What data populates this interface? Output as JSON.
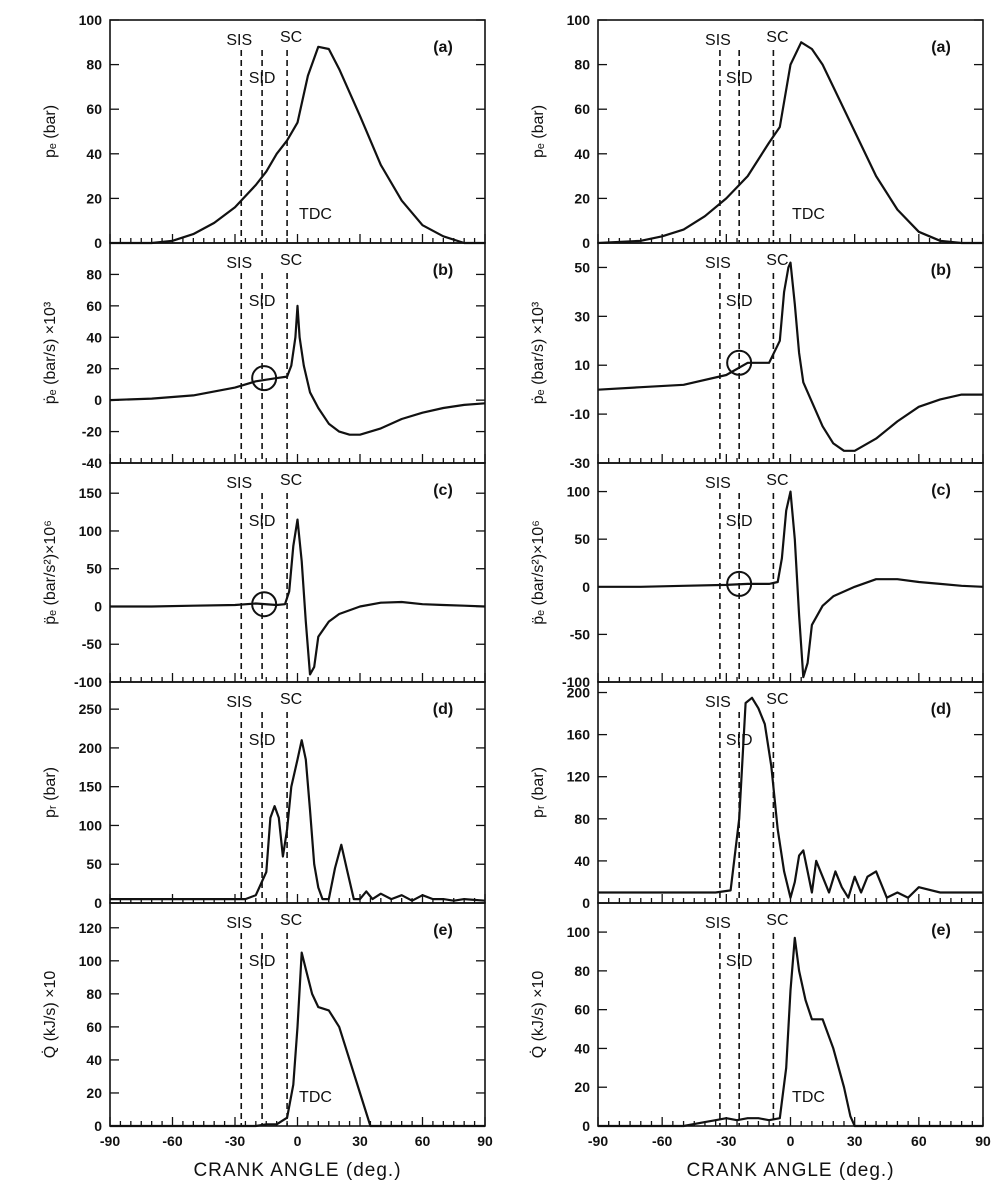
{
  "figure": {
    "x_ticks": [
      -90,
      -60,
      -30,
      0,
      30,
      60,
      90
    ],
    "xlabel": "CRANK ANGLE (deg.)",
    "xlim": [
      -90,
      90
    ]
  },
  "chart_data": [
    {
      "type": "line",
      "column": "left",
      "panel": "(a)",
      "ylabel": "pₑ (bar)",
      "ylim": [
        0,
        100
      ],
      "yticks": [
        0,
        20,
        40,
        60,
        80,
        100
      ],
      "markers": [
        {
          "label": "SIS",
          "x": -27
        },
        {
          "label": "SID",
          "x": -17
        },
        {
          "label": "SC",
          "x": -5
        },
        {
          "label": "TDC",
          "x": 0,
          "label_only": true
        }
      ],
      "series": [
        {
          "x": [
            -90,
            -70,
            -60,
            -50,
            -40,
            -30,
            -20,
            -15,
            -10,
            -5,
            0,
            5,
            10,
            15,
            20,
            30,
            40,
            50,
            60,
            70,
            80,
            90
          ],
          "y": [
            0,
            0,
            1,
            4,
            9,
            16,
            26,
            32,
            40,
            46,
            54,
            75,
            88,
            87,
            78,
            57,
            35,
            19,
            8,
            3,
            0,
            0
          ]
        }
      ]
    },
    {
      "type": "line",
      "column": "left",
      "panel": "(b)",
      "ylabel": "ṗₑ (bar/s) ×10³",
      "ylim": [
        -40,
        100
      ],
      "yticks": [
        -40,
        -20,
        0,
        20,
        40,
        60,
        80
      ],
      "circle": {
        "x": -16,
        "y": 14
      },
      "markers": [
        {
          "label": "SIS",
          "x": -27
        },
        {
          "label": "SID",
          "x": -17
        },
        {
          "label": "SC",
          "x": -5
        }
      ],
      "series": [
        {
          "x": [
            -90,
            -70,
            -50,
            -30,
            -20,
            -10,
            -5,
            -3,
            -1,
            0,
            1,
            3,
            6,
            10,
            15,
            20,
            25,
            30,
            40,
            50,
            60,
            70,
            80,
            90
          ],
          "y": [
            0,
            1,
            3,
            8,
            12,
            14,
            15,
            22,
            40,
            60,
            40,
            22,
            5,
            -5,
            -15,
            -20,
            -22,
            -22,
            -18,
            -12,
            -8,
            -5,
            -3,
            -2
          ]
        }
      ]
    },
    {
      "type": "line",
      "column": "left",
      "panel": "(c)",
      "ylabel": "p̈ₑ (bar/s²)×10⁶",
      "ylim": [
        -100,
        190
      ],
      "yticks": [
        -100,
        -50,
        0,
        50,
        100,
        150
      ],
      "circle": {
        "x": -16,
        "y": 3
      },
      "markers": [
        {
          "label": "SIS",
          "x": -27
        },
        {
          "label": "SID",
          "x": -17
        },
        {
          "label": "SC",
          "x": -5
        }
      ],
      "series": [
        {
          "x": [
            -90,
            -70,
            -50,
            -30,
            -20,
            -10,
            -6,
            -4,
            -2,
            0,
            2,
            4,
            6,
            8,
            10,
            15,
            20,
            30,
            40,
            50,
            60,
            70,
            80,
            90
          ],
          "y": [
            0,
            0,
            1,
            2,
            4,
            2,
            3,
            20,
            80,
            115,
            60,
            -20,
            -90,
            -80,
            -40,
            -20,
            -10,
            0,
            5,
            6,
            3,
            2,
            1,
            0
          ]
        }
      ]
    },
    {
      "type": "line",
      "column": "left",
      "panel": "(d)",
      "ylabel": "pᵣ (bar)",
      "ylim": [
        0,
        285
      ],
      "yticks": [
        0,
        50,
        100,
        150,
        200,
        250
      ],
      "markers": [
        {
          "label": "SIS",
          "x": -27
        },
        {
          "label": "SID",
          "x": -17
        },
        {
          "label": "SC",
          "x": -5
        }
      ],
      "series": [
        {
          "x": [
            -90,
            -60,
            -40,
            -25,
            -20,
            -15,
            -13,
            -11,
            -9,
            -7,
            -5,
            -3,
            0,
            2,
            4,
            6,
            8,
            10,
            12,
            15,
            18,
            21,
            24,
            27,
            30,
            33,
            36,
            40,
            45,
            50,
            55,
            60,
            65,
            70,
            75,
            80,
            90
          ],
          "y": [
            5,
            5,
            5,
            5,
            10,
            40,
            110,
            125,
            110,
            60,
            95,
            150,
            185,
            210,
            185,
            120,
            50,
            20,
            5,
            5,
            45,
            75,
            40,
            5,
            5,
            15,
            5,
            12,
            5,
            10,
            3,
            10,
            5,
            5,
            3,
            5,
            3
          ]
        }
      ]
    },
    {
      "type": "line",
      "column": "left",
      "panel": "(e)",
      "ylabel": "Q̇ (kJ/s) ×10",
      "ylim": [
        0,
        135
      ],
      "yticks": [
        0,
        20,
        40,
        60,
        80,
        100,
        120
      ],
      "markers": [
        {
          "label": "SIS",
          "x": -27
        },
        {
          "label": "SID",
          "x": -17
        },
        {
          "label": "SC",
          "x": -5
        },
        {
          "label": "TDC",
          "x": 0,
          "label_only": true
        }
      ],
      "series": [
        {
          "x": [
            -90,
            -40,
            -30,
            -20,
            -15,
            -10,
            -5,
            -2,
            0,
            2,
            4,
            7,
            10,
            15,
            20,
            25,
            30,
            35,
            40,
            50,
            90
          ],
          "y": [
            0,
            0,
            0,
            0,
            1,
            1,
            5,
            25,
            60,
            105,
            95,
            80,
            72,
            70,
            60,
            40,
            20,
            0,
            0,
            0,
            0
          ]
        }
      ]
    },
    {
      "type": "line",
      "column": "right",
      "panel": "(a)",
      "ylabel": "pₑ (bar)",
      "ylim": [
        0,
        100
      ],
      "yticks": [
        0,
        20,
        40,
        60,
        80,
        100
      ],
      "markers": [
        {
          "label": "SIS",
          "x": -33
        },
        {
          "label": "SID",
          "x": -24
        },
        {
          "label": "SC",
          "x": -8
        },
        {
          "label": "TDC",
          "x": 0,
          "label_only": true
        }
      ],
      "series": [
        {
          "x": [
            -90,
            -70,
            -60,
            -50,
            -40,
            -30,
            -20,
            -10,
            -5,
            0,
            5,
            10,
            15,
            20,
            30,
            40,
            50,
            60,
            70,
            80,
            90
          ],
          "y": [
            0,
            1,
            3,
            6,
            12,
            20,
            30,
            45,
            52,
            80,
            90,
            87,
            80,
            70,
            50,
            30,
            15,
            5,
            1,
            0,
            0
          ]
        }
      ]
    },
    {
      "type": "line",
      "column": "right",
      "panel": "(b)",
      "ylabel": "ṗₑ (bar/s) ×10³",
      "ylim": [
        -30,
        60
      ],
      "yticks": [
        -30,
        -10,
        10,
        30,
        50
      ],
      "circle": {
        "x": -24,
        "y": 11
      },
      "markers": [
        {
          "label": "SIS",
          "x": -33
        },
        {
          "label": "SID",
          "x": -24
        },
        {
          "label": "SC",
          "x": -8
        }
      ],
      "series": [
        {
          "x": [
            -90,
            -70,
            -50,
            -30,
            -20,
            -10,
            -5,
            -3,
            -1,
            0,
            2,
            4,
            6,
            10,
            15,
            20,
            25,
            30,
            40,
            50,
            60,
            70,
            80,
            90
          ],
          "y": [
            0,
            1,
            2,
            6,
            11,
            11,
            20,
            40,
            50,
            52,
            35,
            15,
            3,
            -5,
            -15,
            -22,
            -25,
            -25,
            -20,
            -13,
            -7,
            -4,
            -2,
            -2
          ]
        }
      ]
    },
    {
      "type": "line",
      "column": "right",
      "panel": "(c)",
      "ylabel": "p̈ₑ (bar/s²)×10⁶",
      "ylim": [
        -100,
        130
      ],
      "yticks": [
        -100,
        -50,
        0,
        50,
        100
      ],
      "circle": {
        "x": -24,
        "y": 3
      },
      "markers": [
        {
          "label": "SIS",
          "x": -33
        },
        {
          "label": "SID",
          "x": -24
        },
        {
          "label": "SC",
          "x": -8
        }
      ],
      "series": [
        {
          "x": [
            -90,
            -70,
            -50,
            -30,
            -20,
            -10,
            -6,
            -4,
            -2,
            0,
            2,
            4,
            6,
            8,
            10,
            15,
            20,
            30,
            40,
            50,
            60,
            70,
            80,
            90
          ],
          "y": [
            0,
            0,
            1,
            2,
            3,
            3,
            5,
            30,
            80,
            100,
            50,
            -30,
            -95,
            -80,
            -40,
            -20,
            -10,
            0,
            8,
            8,
            5,
            3,
            1,
            0
          ]
        }
      ]
    },
    {
      "type": "line",
      "column": "right",
      "panel": "(d)",
      "ylabel": "pᵣ (bar)",
      "ylim": [
        0,
        210
      ],
      "yticks": [
        0,
        40,
        80,
        120,
        160,
        200
      ],
      "markers": [
        {
          "label": "SIS",
          "x": -33
        },
        {
          "label": "SID",
          "x": -24
        },
        {
          "label": "SC",
          "x": -8
        }
      ],
      "series": [
        {
          "x": [
            -90,
            -60,
            -35,
            -28,
            -24,
            -21,
            -18,
            -15,
            -12,
            -9,
            -6,
            -3,
            0,
            2,
            4,
            6,
            8,
            10,
            12,
            15,
            18,
            21,
            24,
            27,
            30,
            33,
            36,
            40,
            45,
            50,
            55,
            60,
            70,
            80,
            90
          ],
          "y": [
            10,
            10,
            10,
            12,
            80,
            190,
            195,
            185,
            170,
            130,
            70,
            30,
            5,
            20,
            45,
            50,
            30,
            10,
            40,
            25,
            10,
            30,
            15,
            5,
            25,
            10,
            25,
            30,
            5,
            10,
            5,
            15,
            10,
            10,
            10
          ]
        }
      ]
    },
    {
      "type": "line",
      "column": "right",
      "panel": "(e)",
      "ylabel": "Q̇ (kJ/s) ×10",
      "ylim": [
        0,
        115
      ],
      "yticks": [
        0,
        20,
        40,
        60,
        80,
        100
      ],
      "markers": [
        {
          "label": "SIS",
          "x": -33
        },
        {
          "label": "SID",
          "x": -24
        },
        {
          "label": "SC",
          "x": -8
        },
        {
          "label": "TDC",
          "x": 0,
          "label_only": true
        }
      ],
      "series": [
        {
          "x": [
            -90,
            -50,
            -40,
            -35,
            -30,
            -25,
            -20,
            -15,
            -10,
            -5,
            -2,
            0,
            2,
            4,
            7,
            10,
            15,
            20,
            25,
            28,
            30,
            90
          ],
          "y": [
            0,
            0,
            2,
            3,
            4,
            3,
            4,
            4,
            3,
            4,
            30,
            70,
            97,
            80,
            65,
            55,
            55,
            40,
            20,
            5,
            0,
            0
          ]
        }
      ]
    }
  ]
}
